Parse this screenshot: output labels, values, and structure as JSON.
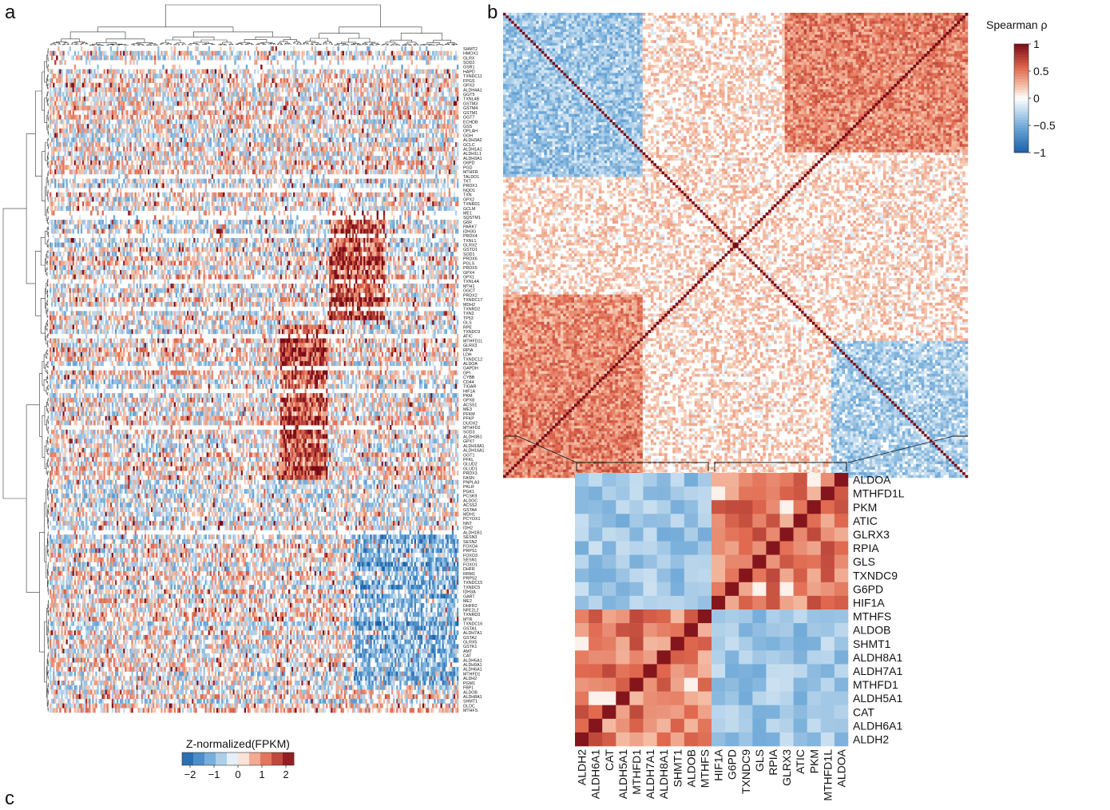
{
  "panel_labels": [
    "a",
    "b",
    "c"
  ],
  "chart_data": [
    {
      "type": "heatmap",
      "panel": "a",
      "title": "",
      "colorbar": {
        "title": "Z-normalized(FPKM)",
        "ticks": [
          "−2",
          "−1",
          "0",
          "1",
          "2"
        ],
        "range": [
          -2.5,
          2.5
        ]
      },
      "row_labels": [
        "SHMT2",
        "HMOX1",
        "GLRX",
        "SOD2",
        "GSR1",
        "HAPD",
        "TXNDC11",
        "FPGS",
        "GPX3",
        "ALDH4A1",
        "GGT5",
        "TXNL4B",
        "GSTM3",
        "GSTM4",
        "GSTM1",
        "GGT7",
        "ECHDB",
        "GSS",
        "OPLAH",
        "GGH",
        "ALDH3A2",
        "GCLC",
        "ALDH1A1",
        "ALDH1L1",
        "ALDH3A1",
        "G6PD",
        "PGD",
        "MTHFR",
        "TALDO1",
        "TKT",
        "PRDX1",
        "NQO1",
        "TXN",
        "GPX2",
        "TXNRD1",
        "GCLM",
        "ME1",
        "SQSTM1",
        "G6R",
        "PARK7",
        "IDH3G",
        "PRDX4",
        "TXNL1",
        "GLRX2",
        "GSTO1",
        "SOD1",
        "PRDX6",
        "PGLS",
        "PRDX5",
        "GPX4",
        "GPX1",
        "TXNL4A",
        "MTH1",
        "GGCT",
        "PRDX2",
        "TXNDC17",
        "MDH2",
        "TXNRD2",
        "TXN2",
        "TP53",
        "GLS",
        "RPE",
        "TXNDC9",
        "ATIC",
        "MTHFD1L",
        "GLRX3",
        "RPIA",
        "LDH",
        "TXNDC12",
        "ALDOA",
        "GAPDH",
        "GPI",
        "CYBB",
        "CD44",
        "TIGAR",
        "HIF1A",
        "PKM",
        "GPX8",
        "ACSS1",
        "ME3",
        "PFKM",
        "PFKP",
        "DUOX2",
        "MTHFD2",
        "SOD3",
        "ALDH3B1",
        "GPX7",
        "ALDH18A1",
        "ALDH16A1",
        "GGT1",
        "PFKL",
        "GLUD2",
        "GLUD1",
        "PRDX3",
        "FASN",
        "PNPLA3",
        "PKLR",
        "PGK1",
        "PCSK9",
        "ALDOC",
        "ACSS2",
        "GSTA4",
        "MDH1",
        "PCYOX1",
        "NNT",
        "IDH2",
        "ALDH1B1",
        "SESN3",
        "SESN2",
        "FOXO4",
        "PRPS1",
        "FOXO3",
        "SESN1",
        "FOXO1",
        "DHFR",
        "RRM1",
        "PRPS2",
        "TXNDC15",
        "TXNDC5",
        "IDH3A",
        "GART",
        "ME2",
        "DHFR2",
        "NFE2L2",
        "TXNRD3",
        "MTR",
        "TXNDC16",
        "GSTA1",
        "ALDH7A1",
        "GSTA2",
        "GLRX5",
        "GSTK1",
        "AMT",
        "CAT",
        "ALDH5A1",
        "ALDH9A1",
        "ALDH6A1",
        "MTHFD1",
        "ALDH2",
        "PGM1",
        "FBP1",
        "ALDOB",
        "ALDH8A1",
        "SHMT1",
        "GLDC",
        "MTHFS"
      ],
      "n_columns": 250
    },
    {
      "type": "heatmap",
      "panel": "b",
      "title": "",
      "colorbar": {
        "title": "Spearman ρ",
        "ticks": [
          "1",
          "0.5",
          "0",
          "−0.5",
          "−1"
        ],
        "range": [
          -1,
          1
        ]
      },
      "n_genes": 170,
      "note_values": "pairwise correlation matrix, diagonal = 1"
    },
    {
      "type": "heatmap",
      "panel": "b-zoom",
      "title": "",
      "right_labels": [
        "ALDOA",
        "MTHFD1L",
        "PKM",
        "ATIC",
        "GLRX3",
        "RPIA",
        "GLS",
        "TXNDC9",
        "G6PD",
        "HIF1A",
        "MTHFS",
        "ALDOB",
        "SHMT1",
        "ALDH8A1",
        "ALDH7A1",
        "MTHFD1",
        "ALDH5A1",
        "CAT",
        "ALDH6A1",
        "ALDH2"
      ],
      "bottom_labels": [
        "ALDH2",
        "ALDH6A1",
        "CAT",
        "ALDH5A1",
        "MTHFD1",
        "ALDH7A1",
        "ALDH8A1",
        "SHMT1",
        "ALDOB",
        "MTHFS",
        "HIF1A",
        "G6PD",
        "TXNDC9",
        "GLS",
        "RPIA",
        "GLRX3",
        "ATIC",
        "PKM",
        "MTHFD1L",
        "ALDOA"
      ],
      "clusters": [
        {
          "genes": [
            "ALDH2",
            "ALDH6A1",
            "CAT",
            "ALDH5A1",
            "MTHFD1",
            "ALDH7A1",
            "ALDH8A1",
            "SHMT1",
            "ALDOB",
            "MTHFS"
          ]
        },
        {
          "genes": [
            "HIF1A",
            "G6PD",
            "TXNDC9",
            "GLS",
            "RPIA",
            "GLRX3",
            "ATIC",
            "PKM",
            "MTHFD1L",
            "ALDOA"
          ]
        }
      ],
      "within_cluster_rho_range": [
        0.3,
        0.8
      ],
      "between_cluster_rho_range": [
        -0.6,
        -0.2
      ]
    }
  ],
  "colors": {
    "strong_neg": "#1a5fa8",
    "neg": "#6aa6d6",
    "weak_neg": "#c9dff0",
    "zero": "#ffffff",
    "weak_pos": "#f6c6ad",
    "pos": "#e0694f",
    "strong_pos": "#7a0a16"
  }
}
